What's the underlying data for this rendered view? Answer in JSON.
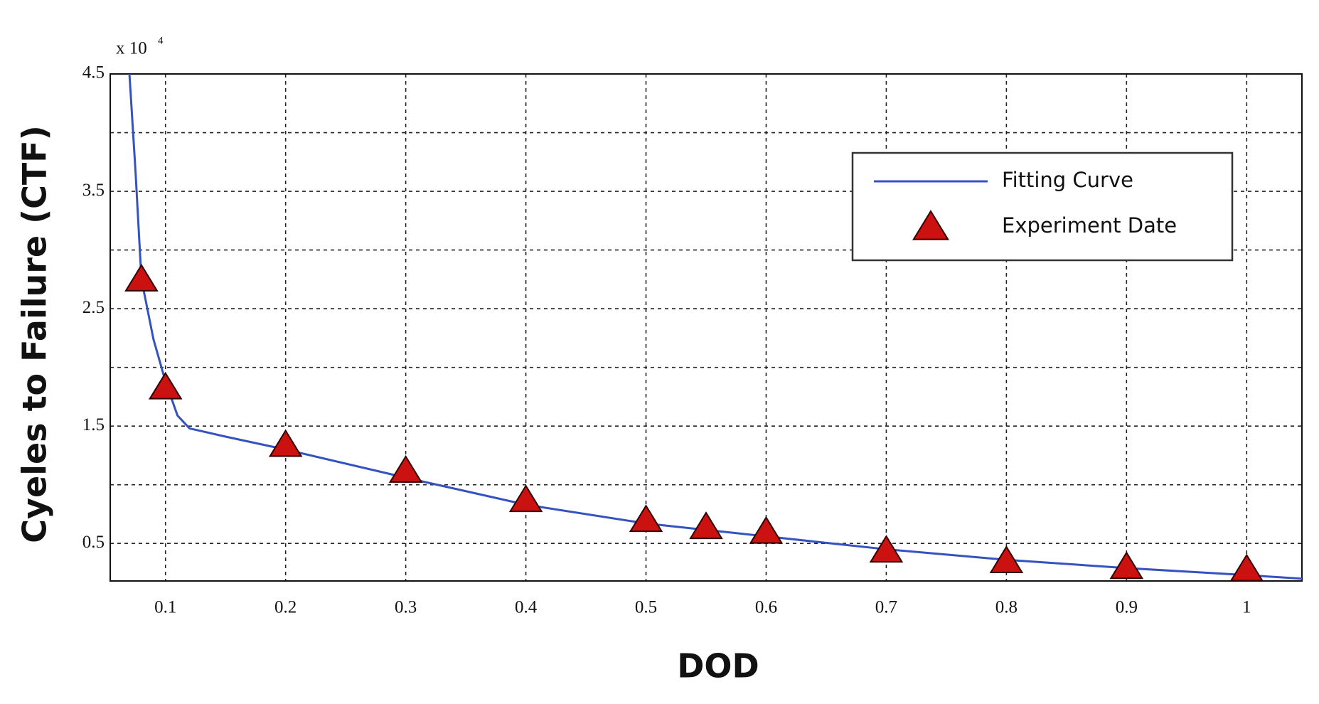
{
  "chart_data": {
    "type": "line",
    "y_multiplier": "x 10",
    "y_multiplier_exp": "4",
    "xlabel": "DOD",
    "ylabel": "Cyeles to Failure (CTF)",
    "xlim": [
      0.054,
      1.046
    ],
    "ylim": [
      0.18,
      4.5
    ],
    "xticks": [
      0.1,
      0.2,
      0.3,
      0.4,
      0.5,
      0.6,
      0.7,
      0.8,
      0.9,
      1
    ],
    "yticks": [
      0.5,
      1.5,
      2.5,
      3.5,
      4.5
    ],
    "ygrid_minor": [
      1,
      2,
      3,
      4
    ],
    "grid": true,
    "legend": "upper right",
    "series": [
      {
        "name": "Fitting Curve",
        "type": "line",
        "color": "#3553c0",
        "x": [
          0.07,
          0.075,
          0.08,
          0.09,
          0.1,
          0.11,
          0.12,
          0.15,
          0.2,
          0.3,
          0.4,
          0.5,
          0.6,
          0.7,
          0.8,
          0.9,
          1.0,
          1.046
        ],
        "values": [
          4.5,
          3.68,
          2.75,
          2.24,
          1.88,
          1.59,
          1.48,
          1.41,
          1.3,
          1.06,
          0.83,
          0.67,
          0.56,
          0.45,
          0.36,
          0.29,
          0.23,
          0.2
        ]
      },
      {
        "name": "Experiment Date",
        "type": "scatter",
        "color": "#cc1111",
        "x": [
          0.08,
          0.1,
          0.2,
          0.3,
          0.4,
          0.5,
          0.55,
          0.6,
          0.7,
          0.8,
          0.9,
          1.0
        ],
        "values": [
          2.75,
          1.83,
          1.34,
          1.12,
          0.87,
          0.7,
          0.64,
          0.6,
          0.44,
          0.35,
          0.3,
          0.28
        ]
      }
    ]
  }
}
